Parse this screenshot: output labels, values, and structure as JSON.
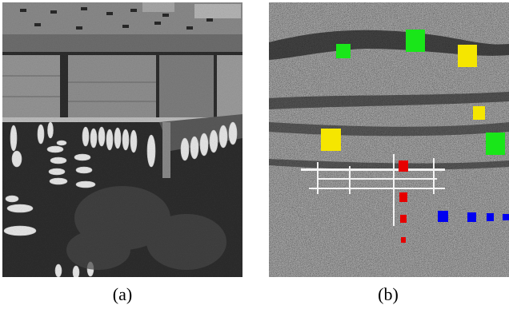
{
  "figure": {
    "panel_a": {
      "caption": "(a)",
      "image_type": "aerial-photo-harbor"
    },
    "panel_b": {
      "caption": "(b)",
      "image_type": "sar-image-with-markers",
      "marker_colors": {
        "green": "#19e619",
        "yellow": "#f5e600",
        "red": "#e60000",
        "blue": "#0000f0"
      },
      "marker_groups": [
        "green",
        "yellow",
        "red",
        "blue"
      ]
    }
  }
}
